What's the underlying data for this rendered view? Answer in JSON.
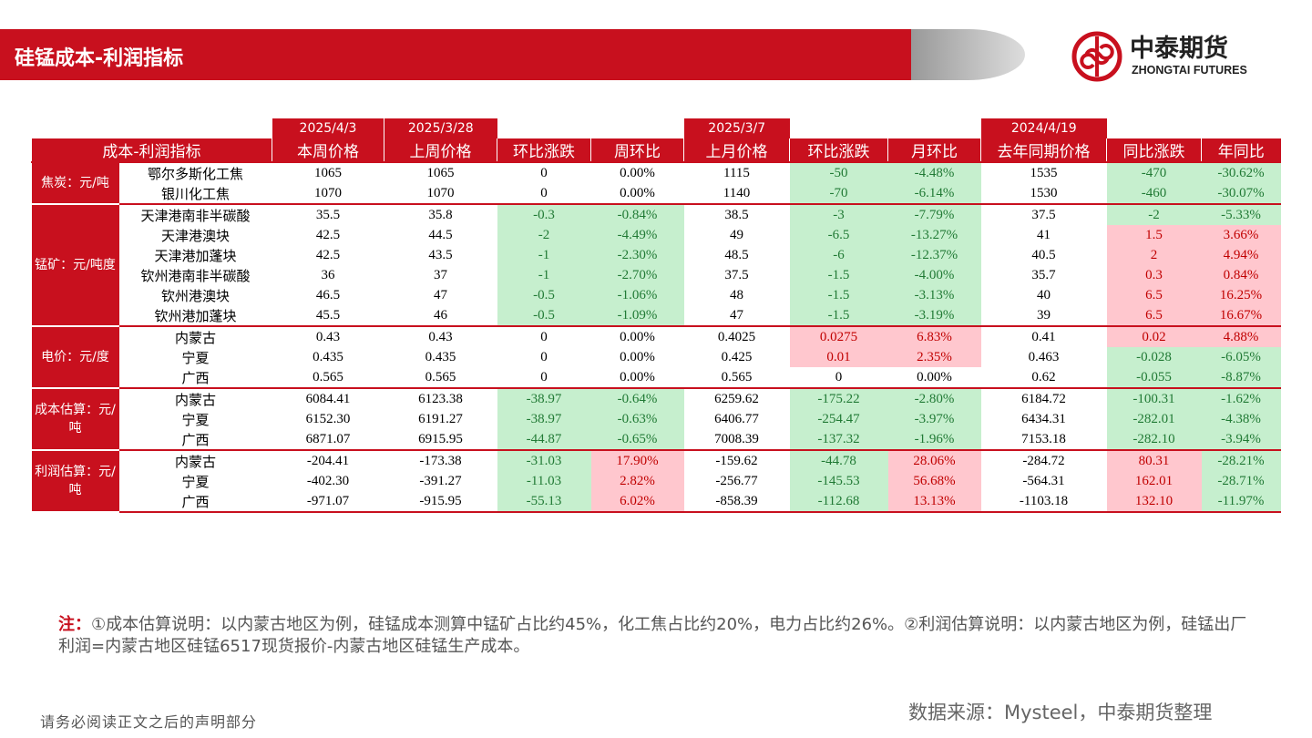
{
  "header": {
    "title": "硅锰成本-利润指标",
    "logo_cn": "中泰期货",
    "logo_en": "ZHONGTAI FUTURES"
  },
  "table": {
    "date_row": [
      "2025/4/3",
      "2025/3/28",
      null,
      null,
      "2025/3/7",
      null,
      null,
      "2024/4/19",
      null,
      null
    ],
    "corner": "成本-利润指标",
    "columns": [
      "本周价格",
      "上周价格",
      "环比涨跌",
      "周环比",
      "上月价格",
      "环比涨跌",
      "月环比",
      "去年同期价格",
      "同比涨跌",
      "年同比"
    ],
    "groups": [
      {
        "label": "焦炭：元/吨",
        "rows": [
          {
            "name": "鄂尔多斯化工焦",
            "cells": [
              "1065",
              "1065",
              "0",
              "0.00%",
              "1115",
              "-50",
              "-4.48%",
              "1535",
              "-470",
              "-30.62%"
            ],
            "colors": [
              null,
              null,
              null,
              null,
              null,
              "#c6efce",
              "#c6efce",
              null,
              "#c6efce",
              "#c6efce"
            ]
          },
          {
            "name": "银川化工焦",
            "cells": [
              "1070",
              "1070",
              "0",
              "0.00%",
              "1140",
              "-70",
              "-6.14%",
              "1530",
              "-460",
              "-30.07%"
            ],
            "colors": [
              null,
              null,
              null,
              null,
              null,
              "#c6efce",
              "#c6efce",
              null,
              "#c6efce",
              "#c6efce"
            ]
          }
        ]
      },
      {
        "label": "锰矿：元/吨度",
        "rows": [
          {
            "name": "天津港南非半碳酸",
            "cells": [
              "35.5",
              "35.8",
              "-0.3",
              "-0.84%",
              "38.5",
              "-3",
              "-7.79%",
              "37.5",
              "-2",
              "-5.33%"
            ],
            "colors": [
              null,
              null,
              "#c6efce",
              "#c6efce",
              null,
              "#c6efce",
              "#c6efce",
              null,
              "#c6efce",
              "#c6efce"
            ]
          },
          {
            "name": "天津港澳块",
            "cells": [
              "42.5",
              "44.5",
              "-2",
              "-4.49%",
              "49",
              "-6.5",
              "-13.27%",
              "41",
              "1.5",
              "3.66%"
            ],
            "colors": [
              null,
              null,
              "#c6efce",
              "#c6efce",
              null,
              "#c6efce",
              "#c6efce",
              null,
              "#ffc7ce",
              "#ffc7ce"
            ]
          },
          {
            "name": "天津港加蓬块",
            "cells": [
              "42.5",
              "43.5",
              "-1",
              "-2.30%",
              "48.5",
              "-6",
              "-12.37%",
              "40.5",
              "2",
              "4.94%"
            ],
            "colors": [
              null,
              null,
              "#c6efce",
              "#c6efce",
              null,
              "#c6efce",
              "#c6efce",
              null,
              "#ffc7ce",
              "#ffc7ce"
            ]
          },
          {
            "name": "钦州港南非半碳酸",
            "cells": [
              "36",
              "37",
              "-1",
              "-2.70%",
              "37.5",
              "-1.5",
              "-4.00%",
              "35.7",
              "0.3",
              "0.84%"
            ],
            "colors": [
              null,
              null,
              "#c6efce",
              "#c6efce",
              null,
              "#c6efce",
              "#c6efce",
              null,
              "#ffc7ce",
              "#ffc7ce"
            ]
          },
          {
            "name": "钦州港澳块",
            "cells": [
              "46.5",
              "47",
              "-0.5",
              "-1.06%",
              "48",
              "-1.5",
              "-3.13%",
              "40",
              "6.5",
              "16.25%"
            ],
            "colors": [
              null,
              null,
              "#c6efce",
              "#c6efce",
              null,
              "#c6efce",
              "#c6efce",
              null,
              "#ffc7ce",
              "#ffc7ce"
            ]
          },
          {
            "name": "钦州港加蓬块",
            "cells": [
              "45.5",
              "46",
              "-0.5",
              "-1.09%",
              "47",
              "-1.5",
              "-3.19%",
              "39",
              "6.5",
              "16.67%"
            ],
            "colors": [
              null,
              null,
              "#c6efce",
              "#c6efce",
              null,
              "#c6efce",
              "#c6efce",
              null,
              "#ffc7ce",
              "#ffc7ce"
            ]
          }
        ]
      },
      {
        "label": "电价：元/度",
        "rows": [
          {
            "name": "内蒙古",
            "cells": [
              "0.43",
              "0.43",
              "0",
              "0.00%",
              "0.4025",
              "0.0275",
              "6.83%",
              "0.41",
              "0.02",
              "4.88%"
            ],
            "colors": [
              null,
              null,
              null,
              null,
              null,
              "#ffc7ce",
              "#ffc7ce",
              null,
              "#ffc7ce",
              "#ffc7ce"
            ]
          },
          {
            "name": "宁夏",
            "cells": [
              "0.435",
              "0.435",
              "0",
              "0.00%",
              "0.425",
              "0.01",
              "2.35%",
              "0.463",
              "-0.028",
              "-6.05%"
            ],
            "colors": [
              null,
              null,
              null,
              null,
              null,
              "#ffc7ce",
              "#ffc7ce",
              null,
              "#c6efce",
              "#c6efce"
            ]
          },
          {
            "name": "广西",
            "cells": [
              "0.565",
              "0.565",
              "0",
              "0.00%",
              "0.565",
              "0",
              "0.00%",
              "0.62",
              "-0.055",
              "-8.87%"
            ],
            "colors": [
              null,
              null,
              null,
              null,
              null,
              null,
              null,
              null,
              "#c6efce",
              "#c6efce"
            ]
          }
        ]
      },
      {
        "label": "成本估算：元/吨",
        "rows": [
          {
            "name": "内蒙古",
            "cells": [
              "6084.41",
              "6123.38",
              "-38.97",
              "-0.64%",
              "6259.62",
              "-175.22",
              "-2.80%",
              "6184.72",
              "-100.31",
              "-1.62%"
            ],
            "colors": [
              null,
              null,
              "#c6efce",
              "#c6efce",
              null,
              "#c6efce",
              "#c6efce",
              null,
              "#c6efce",
              "#c6efce"
            ]
          },
          {
            "name": "宁夏",
            "cells": [
              "6152.30",
              "6191.27",
              "-38.97",
              "-0.63%",
              "6406.77",
              "-254.47",
              "-3.97%",
              "6434.31",
              "-282.01",
              "-4.38%"
            ],
            "colors": [
              null,
              null,
              "#c6efce",
              "#c6efce",
              null,
              "#c6efce",
              "#c6efce",
              null,
              "#c6efce",
              "#c6efce"
            ]
          },
          {
            "name": "广西",
            "cells": [
              "6871.07",
              "6915.95",
              "-44.87",
              "-0.65%",
              "7008.39",
              "-137.32",
              "-1.96%",
              "7153.18",
              "-282.10",
              "-3.94%"
            ],
            "colors": [
              null,
              null,
              "#c6efce",
              "#c6efce",
              null,
              "#c6efce",
              "#c6efce",
              null,
              "#c6efce",
              "#c6efce"
            ]
          }
        ]
      },
      {
        "label": "利润估算：元/吨",
        "rows": [
          {
            "name": "内蒙古",
            "cells": [
              "-204.41",
              "-173.38",
              "-31.03",
              "17.90%",
              "-159.62",
              "-44.78",
              "28.06%",
              "-284.72",
              "80.31",
              "-28.21%"
            ],
            "colors": [
              null,
              null,
              "#c6efce",
              "#ffc7ce",
              null,
              "#c6efce",
              "#ffc7ce",
              null,
              "#ffc7ce",
              "#c6efce"
            ]
          },
          {
            "name": "宁夏",
            "cells": [
              "-402.30",
              "-391.27",
              "-11.03",
              "2.82%",
              "-256.77",
              "-145.53",
              "56.68%",
              "-564.31",
              "162.01",
              "-28.71%"
            ],
            "colors": [
              null,
              null,
              "#c6efce",
              "#ffc7ce",
              null,
              "#c6efce",
              "#ffc7ce",
              null,
              "#ffc7ce",
              "#c6efce"
            ]
          },
          {
            "name": "广西",
            "cells": [
              "-971.07",
              "-915.95",
              "-55.13",
              "6.02%",
              "-858.39",
              "-112.68",
              "13.13%",
              "-1103.18",
              "132.10",
              "-11.97%"
            ],
            "colors": [
              null,
              null,
              "#c6efce",
              "#ffc7ce",
              null,
              "#c6efce",
              "#ffc7ce",
              null,
              "#ffc7ce",
              "#c6efce"
            ]
          }
        ]
      }
    ]
  },
  "note": {
    "prefix": "注：",
    "text": "①成本估算说明：以内蒙古地区为例，硅锰成本测算中锰矿占比约45%，化工焦占比约20%，电力占比约26%。②利润估算说明：以内蒙古地区为例，硅锰出厂利润=内蒙古地区硅锰6517现货报价-内蒙古地区硅锰生产成本。"
  },
  "source": "数据来源：Mysteel，中泰期货整理",
  "disclaimer": "请务必阅读正文之后的声明部分"
}
